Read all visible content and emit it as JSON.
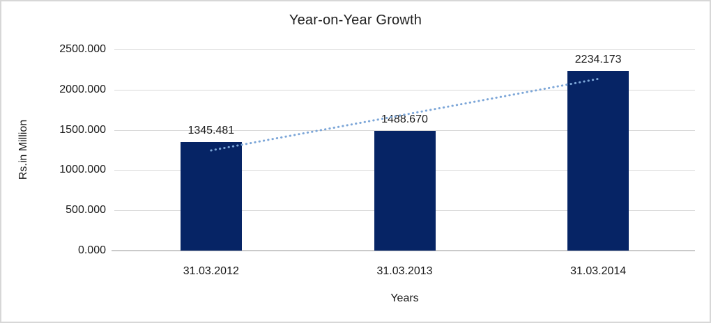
{
  "frame": {
    "border_color": "#d7d7d7",
    "background_color": "#ffffff"
  },
  "chart_data": {
    "type": "bar",
    "title": "Year-on-Year Growth",
    "categories": [
      "31.03.2012",
      "31.03.2013",
      "31.03.2014"
    ],
    "values": [
      1345.481,
      1488.67,
      2234.173
    ],
    "data_labels": [
      "1345.481",
      "1488.670",
      "2234.173"
    ],
    "xlabel": "Years",
    "ylabel": "Rs.in Million",
    "ylim": [
      0,
      2500
    ],
    "yticks": [
      0,
      500,
      1000,
      1500,
      2000,
      2500
    ],
    "ytick_labels": [
      "0.000",
      "500.000",
      "1000.000",
      "1500.000",
      "2000.000",
      "2500.000"
    ],
    "grid": "horizontal",
    "legend": "none",
    "bar_color": "#062465",
    "gridline_color": "#d9d9d9",
    "trendline": {
      "type": "linear",
      "style": "dotted",
      "color": "#7ca6d8"
    }
  }
}
